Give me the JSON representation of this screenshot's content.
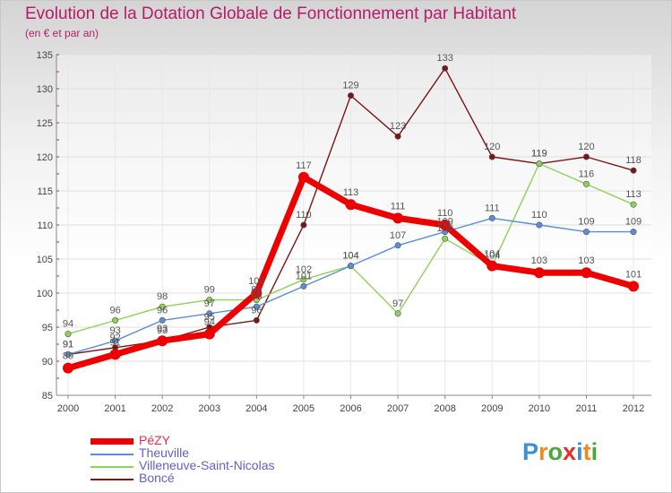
{
  "title": "Evolution de la Dotation Globale de Fonctionnement par Habitant",
  "subtitle": "(en € et par an)",
  "logo": {
    "text": "Proxiti",
    "colors": [
      "#3a8fd6",
      "#f08a1c",
      "#4aa83a",
      "#e3302f",
      "#3a8fd6",
      "#f08a1c",
      "#4aa83a"
    ]
  },
  "chart_data": {
    "type": "line",
    "title": "Evolution de la Dotation Globale de Fonctionnement par Habitant",
    "subtitle": "(en € et par an)",
    "xlabel": "",
    "ylabel": "",
    "categories": [
      "2000",
      "2001",
      "2002",
      "2003",
      "2004",
      "2005",
      "2006",
      "2007",
      "2008",
      "2009",
      "2010",
      "2011",
      "2012"
    ],
    "ylim": [
      85,
      135
    ],
    "yticks": [
      85,
      90,
      95,
      100,
      105,
      110,
      115,
      120,
      125,
      130,
      135
    ],
    "grid": true,
    "legend": "bottom-left",
    "series": [
      {
        "name": "Boncé",
        "color": "#7a1616",
        "values": [
          91,
          92,
          93,
          95,
          96,
          110,
          129,
          123,
          133,
          120,
          119,
          120,
          118
        ],
        "labels": [
          "91",
          "92",
          "93",
          "95",
          "96",
          "110",
          "129",
          "123",
          "133",
          "120",
          "119",
          "120",
          "118"
        ]
      },
      {
        "name": "Villeneuve-Saint-Nicolas",
        "color": "#8fd25a",
        "values": [
          94,
          96,
          98,
          99,
          99,
          102,
          104,
          97,
          108,
          104,
          119,
          116,
          113
        ],
        "labels": [
          "94",
          "96",
          "98",
          "99",
          "99",
          "102",
          "104",
          "97",
          "108",
          "104",
          "119",
          "116",
          "113"
        ]
      },
      {
        "name": "Theuville",
        "color": "#5b8ed6",
        "values": [
          91,
          93,
          96,
          97,
          98,
          101,
          104,
          107,
          109,
          111,
          110,
          109,
          109
        ],
        "labels": [
          "91",
          "93",
          "96",
          "97",
          "98",
          "101",
          "104",
          "107",
          "109",
          "111",
          "110",
          "109",
          "109"
        ]
      },
      {
        "name": "PéZY",
        "color": "#ee0000",
        "values": [
          89,
          91,
          93,
          94,
          100,
          117,
          113,
          111,
          110,
          104,
          103,
          103,
          101
        ],
        "labels": [
          "89",
          "91",
          "93",
          "94",
          "100",
          "117",
          "113",
          "111",
          "110",
          "104",
          "103",
          "103",
          "101"
        ]
      }
    ],
    "legend_order": [
      "PéZY",
      "Theuville",
      "Villeneuve-Saint-Nicolas",
      "Boncé"
    ]
  }
}
